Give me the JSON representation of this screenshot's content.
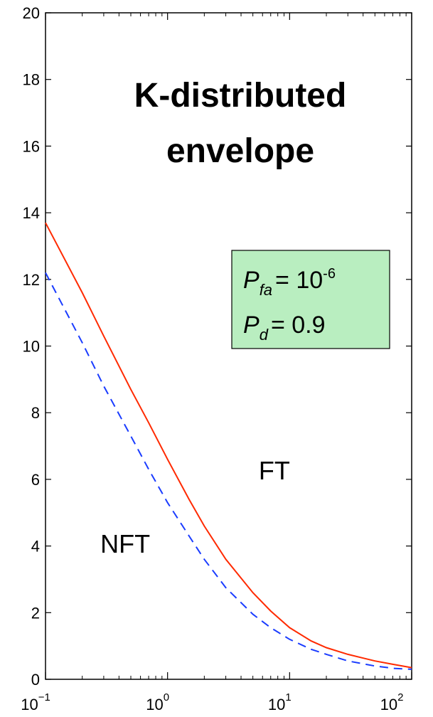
{
  "chart_data": {
    "type": "line",
    "title_lines": [
      "K-distributed",
      "envelope"
    ],
    "xscale": "log",
    "xlim": [
      0.1,
      100
    ],
    "ylim": [
      0,
      20
    ],
    "x_ticks": [
      {
        "base": "10",
        "exp": "−1",
        "value": 0.1
      },
      {
        "base": "10",
        "exp": "0",
        "value": 1
      },
      {
        "base": "10",
        "exp": "1",
        "value": 10
      },
      {
        "base": "10",
        "exp": "2",
        "value": 100
      }
    ],
    "y_ticks": [
      0,
      2,
      4,
      6,
      8,
      10,
      12,
      14,
      16,
      18,
      20
    ],
    "grid": false,
    "series": [
      {
        "name": "FT",
        "color": "#ff2a00",
        "dash": "solid",
        "x": [
          0.1,
          0.2,
          0.3,
          0.5,
          0.7,
          1,
          1.5,
          2,
          3,
          5,
          7,
          10,
          15,
          20,
          30,
          50,
          70,
          100
        ],
        "y": [
          13.7,
          11.6,
          10.3,
          8.7,
          7.7,
          6.6,
          5.4,
          4.6,
          3.6,
          2.6,
          2.05,
          1.55,
          1.15,
          0.95,
          0.75,
          0.55,
          0.45,
          0.35
        ]
      },
      {
        "name": "NFT",
        "color": "#1a3cff",
        "dash": "dashed",
        "x": [
          0.1,
          0.2,
          0.3,
          0.5,
          0.7,
          1,
          1.5,
          2,
          3,
          5,
          7,
          10,
          15,
          20,
          30,
          50,
          70,
          100
        ],
        "y": [
          12.2,
          10.1,
          8.8,
          7.3,
          6.3,
          5.3,
          4.3,
          3.6,
          2.75,
          1.95,
          1.55,
          1.2,
          0.9,
          0.75,
          0.55,
          0.4,
          0.33,
          0.3
        ]
      }
    ],
    "annotations": [
      {
        "text": "FT",
        "x": 7.5,
        "y": 6.0
      },
      {
        "text": "NFT",
        "x": 0.45,
        "y": 3.8
      }
    ],
    "param_box": {
      "background": "#b9eec0",
      "pfa_symbol": "P",
      "pfa_subscript": "fa",
      "pfa_eq": "= 10",
      "pfa_exp": "-6",
      "pd_symbol": "P",
      "pd_subscript": "d",
      "pd_eq": "= 0.9"
    }
  }
}
